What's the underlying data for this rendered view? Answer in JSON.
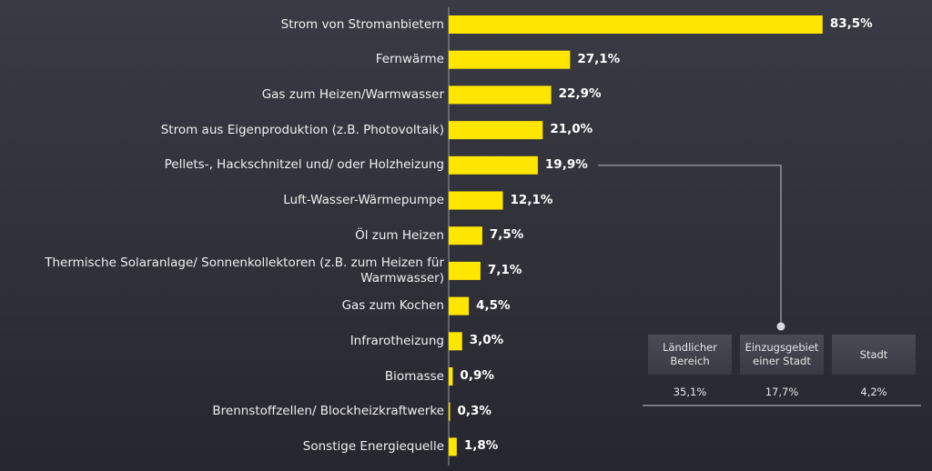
{
  "chart_data": {
    "type": "bar",
    "orientation": "horizontal",
    "xlim": [
      0,
      100
    ],
    "grid": false,
    "bar_color": "#ffe600",
    "categories": [
      "Strom von Stromanbietern",
      "Fernwärme",
      "Gas zum Heizen/Warmwasser",
      "Strom aus Eigenproduktion (z.B. Photovoltaik)",
      "Pellets-, Hackschnitzel und/ oder Holzheizung",
      "Luft-Wasser-Wärmepumpe",
      "Öl zum Heizen",
      "Thermische Solaranlage/ Sonnenkollektoren (z.B. zum Heizen für Warmwasser)",
      "Gas zum Kochen",
      "Infrarotheizung",
      "Biomasse",
      "Brennstoffzellen/ Blockheizkraftwerke",
      "Sonstige Energiequelle"
    ],
    "values": [
      83.5,
      27.1,
      22.9,
      21.0,
      19.9,
      12.1,
      7.5,
      7.1,
      4.5,
      3.0,
      0.9,
      0.3,
      1.8
    ],
    "value_labels": [
      "83,5%",
      "27,1%",
      "22,9%",
      "21,0%",
      "19,9%",
      "12,1%",
      "7,5%",
      "7,1%",
      "4,5%",
      "3,0%",
      "0,9%",
      "0,3%",
      "1,8%"
    ]
  },
  "callout": {
    "source_category": "Pellets-, Hackschnitzel und/ oder Holzheizung",
    "items": [
      {
        "label": "Ländlicher Bereich",
        "value": "35,1%"
      },
      {
        "label": "Einzugsgebiet einer Stadt",
        "value": "17,7%"
      },
      {
        "label": "Stadt",
        "value": "4,2%"
      }
    ]
  }
}
